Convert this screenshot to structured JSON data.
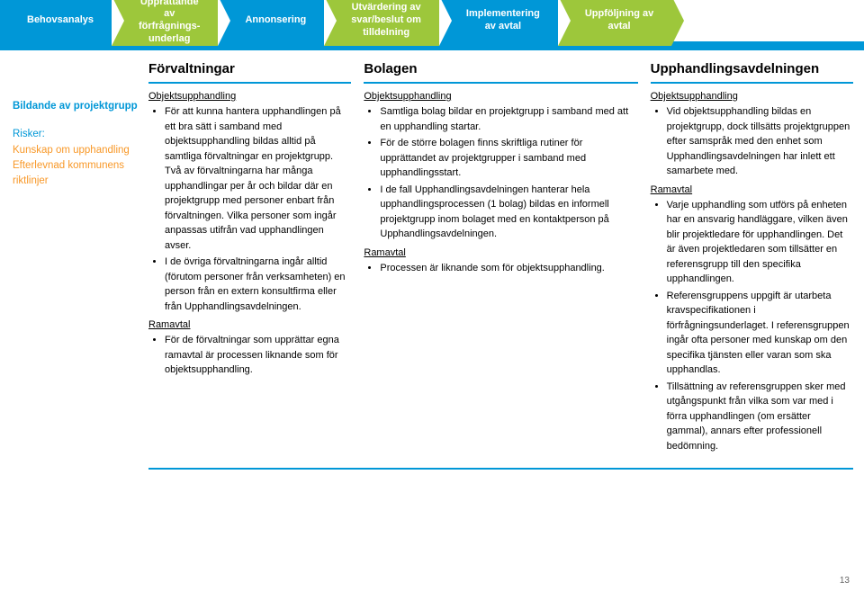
{
  "page_number": "13",
  "banner": {
    "active_bg": "#0097d7",
    "inactive_bg": "#9dc73b",
    "inactive_bg2": "#86b52f",
    "items": [
      {
        "label": "Behovsanalys",
        "active": true
      },
      {
        "label": "Upprättande\nav\nförfrågnings-\nunderlag",
        "active": false
      },
      {
        "label": "Annonsering",
        "active": true
      },
      {
        "label": "Utvärdering av\nsvar/beslut om\ntilldelning",
        "active": false
      },
      {
        "label": "Implementering\nav avtal",
        "active": true
      },
      {
        "label": "Uppföljning av\navtal",
        "active": false
      }
    ]
  },
  "sidebar": {
    "heading": "Bildande av projektgrupp",
    "risk_title": "Risker:",
    "risks": [
      "Kunskap om upphandling",
      "Efterlevnad kommunens riktlinjer"
    ]
  },
  "columns": [
    {
      "title": "Förvaltningar",
      "sections": [
        {
          "heading": "Objektsupphandling",
          "bullets": [
            "För att kunna hantera upphandlingen på ett bra sätt i samband med objektsupphandling bildas alltid på samtliga förvaltningar en projektgrupp. Två av förvaltningarna har många upphandlingar per år och bildar där en projektgrupp med personer enbart från förvaltningen. Vilka personer som ingår anpassas utifrån vad upphandlingen avser.",
            "I de övriga förvaltningarna ingår alltid (förutom personer från verksamheten) en person från en extern konsultfirma eller från Upphandlingsavdelningen."
          ]
        },
        {
          "heading": "Ramavtal",
          "bullets": [
            "För de förvaltningar som upprättar egna ramavtal är processen liknande som för objektsupphandling."
          ]
        }
      ]
    },
    {
      "title": "Bolagen",
      "sections": [
        {
          "heading": "Objektsupphandling",
          "bullets": [
            "Samtliga bolag bildar en projektgrupp i samband med att en upphandling startar.",
            "För de större bolagen finns skriftliga rutiner för upprättandet av projektgrupper i samband med upphandlingsstart.",
            "I de fall Upphandlingsavdelningen hanterar hela upphandlingsprocessen (1 bolag) bildas en informell projektgrupp inom bolaget med en kontaktperson på Upphandlingsavdelningen."
          ]
        },
        {
          "heading": "Ramavtal",
          "bullets": [
            "Processen är liknande som för objektsupphandling."
          ]
        }
      ]
    },
    {
      "title": "Upphandlingsavdelningen",
      "sections": [
        {
          "heading": "Objektsupphandling",
          "bullets": [
            "Vid objektsupphandling bildas en projektgrupp, dock tillsätts projektgruppen efter samspråk med den enhet som Upphandlingsavdelningen har inlett ett samarbete med."
          ]
        },
        {
          "heading": "Ramavtal",
          "bullets": [
            "Varje upphandling som utförs på enheten har en ansvarig handläggare, vilken även blir projektledare för upphandlingen. Det är även projektledaren som tillsätter en referensgrupp till den specifika upphandlingen.",
            "Referensgruppens uppgift är utarbeta kravspecifikationen i förfrågningsunderlaget. I referensgruppen ingår ofta personer med kunskap om den specifika tjänsten eller varan som ska upphandlas.",
            "Tillsättning av referensgruppen sker med utgångspunkt från vilka som var med i förra upphandlingen (om ersätter gammal), annars efter professionell bedömning."
          ]
        }
      ]
    }
  ]
}
